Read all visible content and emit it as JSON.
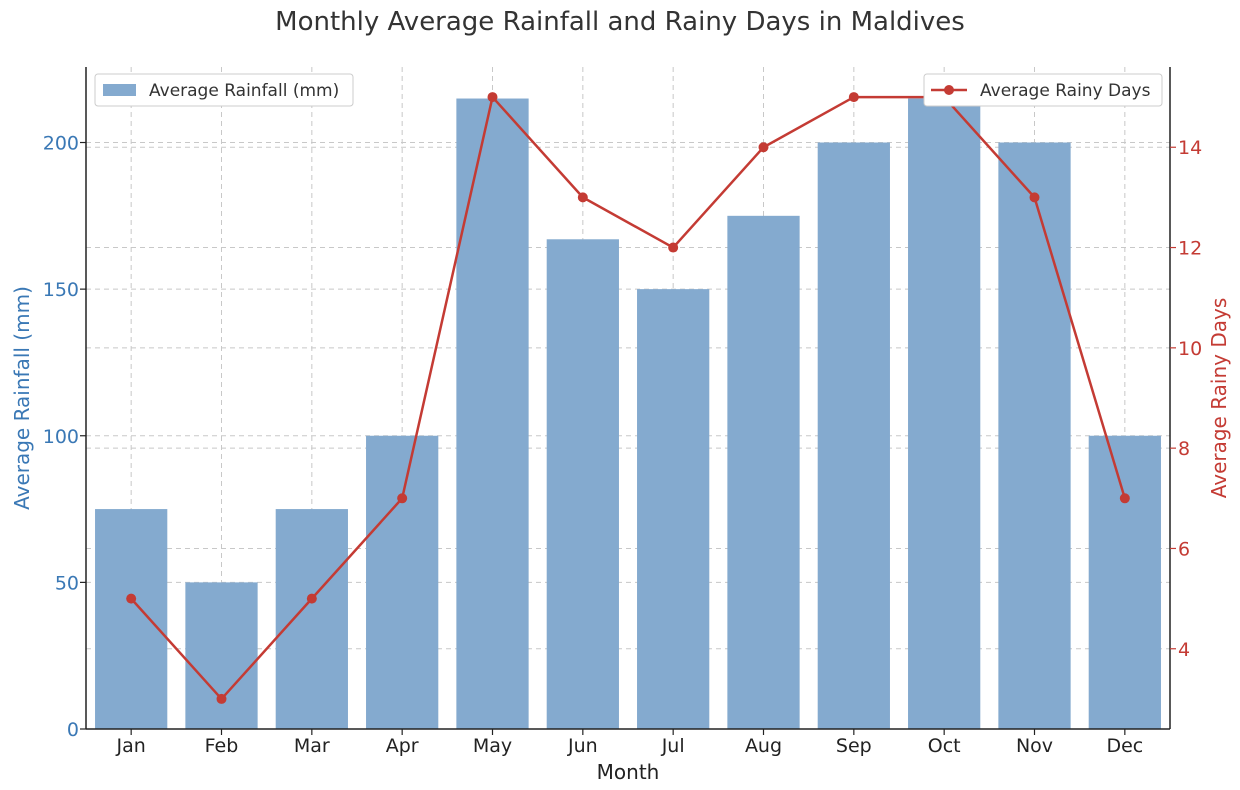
{
  "chart_data": {
    "type": "bar+line",
    "title": "Monthly Average Rainfall and Rainy Days in Maldives",
    "xlabel": "Month",
    "categories": [
      "Jan",
      "Feb",
      "Mar",
      "Apr",
      "May",
      "Jun",
      "Jul",
      "Aug",
      "Sep",
      "Oct",
      "Nov",
      "Dec"
    ],
    "series": [
      {
        "name": "Average Rainfall (mm)",
        "type": "bar",
        "axis": "left",
        "color": "#84aacf",
        "values": [
          75,
          50,
          75,
          100,
          215,
          167,
          150,
          175,
          200,
          215,
          200,
          100
        ]
      },
      {
        "name": "Average Rainy Days",
        "type": "line",
        "axis": "right",
        "color": "#c43b34",
        "values": [
          5,
          3,
          5,
          7,
          15,
          13,
          12,
          14,
          15,
          15,
          13,
          7
        ]
      }
    ],
    "y_left": {
      "label": "Average Rainfall (mm)",
      "range": [
        0,
        225.75
      ],
      "ticks": [
        0,
        50,
        100,
        150,
        200
      ],
      "color": "#3a78b5"
    },
    "y_right": {
      "label": "Average Rainy Days",
      "range": [
        2.4,
        15.6
      ],
      "ticks": [
        4,
        6,
        8,
        10,
        12,
        14
      ],
      "color": "#c43b34"
    },
    "grid": true,
    "legend_left_position": "top-left",
    "legend_right_position": "top-right"
  }
}
